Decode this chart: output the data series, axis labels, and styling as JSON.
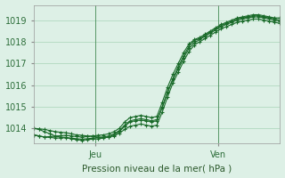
{
  "title": "",
  "xlabel": "Pression niveau de la mer( hPa )",
  "ylabel": "",
  "bg_color": "#ddf0e6",
  "grid_color": "#a8d4b8",
  "line_color": "#1a6b2a",
  "xlim": [
    0,
    48
  ],
  "ylim": [
    1013.3,
    1019.7
  ],
  "yticks": [
    1014,
    1015,
    1016,
    1017,
    1018,
    1019
  ],
  "xtick_positions": [
    12,
    36
  ],
  "xtick_labels": [
    "Jeu",
    "Ven"
  ],
  "vlines": [
    12,
    36
  ],
  "series": [
    [
      0,
      1013.7,
      1013.65,
      1013.6,
      1013.62,
      1013.64,
      1013.66,
      1013.68,
      1013.65,
      1013.62,
      1013.6,
      1013.62,
      1013.65,
      1013.68,
      1013.7,
      1013.75,
      1013.85,
      1014.0,
      1014.3,
      1014.5,
      1014.55,
      1014.6,
      1014.55,
      1014.5,
      1014.55,
      1015.2,
      1015.9,
      1016.5,
      1017.0,
      1017.5,
      1017.9,
      1018.1,
      1018.2,
      1018.35,
      1018.5,
      1018.65,
      1018.8,
      1018.9,
      1019.0,
      1019.1,
      1019.15,
      1019.2,
      1019.25,
      1019.25,
      1019.2,
      1019.15,
      1019.1,
      1019.1
    ],
    [
      0,
      1013.7,
      1013.65,
      1013.6,
      1013.58,
      1013.56,
      1013.55,
      1013.57,
      1013.55,
      1013.52,
      1013.5,
      1013.52,
      1013.55,
      1013.58,
      1013.6,
      1013.65,
      1013.75,
      1013.9,
      1014.15,
      1014.35,
      1014.4,
      1014.45,
      1014.4,
      1014.35,
      1014.4,
      1015.0,
      1015.7,
      1016.3,
      1016.85,
      1017.35,
      1017.8,
      1018.05,
      1018.15,
      1018.3,
      1018.45,
      1018.6,
      1018.75,
      1018.85,
      1018.95,
      1019.05,
      1019.1,
      1019.15,
      1019.2,
      1019.2,
      1019.15,
      1019.1,
      1019.05,
      1019.0
    ],
    [
      0,
      1014.0,
      1013.95,
      1013.85,
      1013.75,
      1013.65,
      1013.6,
      1013.58,
      1013.52,
      1013.48,
      1013.45,
      1013.48,
      1013.5,
      1013.52,
      1013.55,
      1013.6,
      1013.7,
      1013.85,
      1014.1,
      1014.3,
      1014.35,
      1014.38,
      1014.35,
      1014.3,
      1014.35,
      1014.95,
      1015.65,
      1016.25,
      1016.75,
      1017.25,
      1017.7,
      1017.95,
      1018.1,
      1018.25,
      1018.4,
      1018.55,
      1018.7,
      1018.8,
      1018.9,
      1019.0,
      1019.05,
      1019.1,
      1019.15,
      1019.15,
      1019.1,
      1019.05,
      1019.0,
      1018.95
    ],
    [
      0,
      1014.0,
      1013.98,
      1013.95,
      1013.9,
      1013.85,
      1013.82,
      1013.8,
      1013.75,
      1013.7,
      1013.68,
      1013.65,
      1013.63,
      1013.6,
      1013.58,
      1013.6,
      1013.65,
      1013.78,
      1013.95,
      1014.1,
      1014.15,
      1014.2,
      1014.15,
      1014.1,
      1014.15,
      1014.75,
      1015.45,
      1016.1,
      1016.6,
      1017.1,
      1017.55,
      1017.85,
      1018.0,
      1018.15,
      1018.3,
      1018.45,
      1018.6,
      1018.7,
      1018.8,
      1018.9,
      1018.95,
      1019.0,
      1019.05,
      1019.05,
      1019.0,
      1018.95,
      1018.9,
      1018.85
    ]
  ]
}
